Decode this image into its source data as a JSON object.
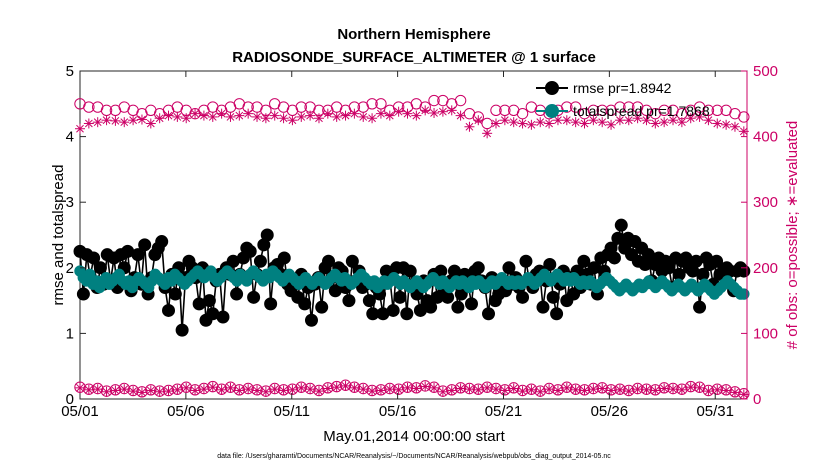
{
  "chart_data": {
    "type": "line",
    "title": "Northern Hemisphere",
    "subtitle": "RADIOSONDE_SURFACE_ALTIMETER @ 1 surface",
    "xlabel": "May.01,2014 00:00:00 start",
    "ylabel_left": "rmse and totalspread",
    "ylabel_right": "# of obs: o=possible; ∗=evaluated",
    "footnote": "data file: /Users/gharamti/Documents/NCAR/Reanalysis/~/Documents/NCAR/Reanalysis/webpub/obs_diag_output_2014-05.nc",
    "x_range": [
      0,
      31.5
    ],
    "x_ticks": [
      {
        "label": "05/01",
        "day": 0
      },
      {
        "label": "05/06",
        "day": 5
      },
      {
        "label": "05/11",
        "day": 10
      },
      {
        "label": "05/16",
        "day": 15
      },
      {
        "label": "05/21",
        "day": 20
      },
      {
        "label": "05/26",
        "day": 25
      },
      {
        "label": "05/31",
        "day": 30
      }
    ],
    "ylim_left": [
      0,
      5
    ],
    "yticks_left": [
      "0",
      "1",
      "2",
      "3",
      "4",
      "5"
    ],
    "ylim_right": [
      0,
      500
    ],
    "yticks_right": [
      "0",
      "100",
      "200",
      "300",
      "400",
      "500"
    ],
    "colors": {
      "rmse": "#000000",
      "spread": "#008080",
      "obs": "#cc0066"
    },
    "series": [
      {
        "name": "rmse",
        "legend": "rmse pr=1.8942",
        "axis": "left",
        "values": [
          2.25,
          1.6,
          2.2,
          1.85,
          2.15,
          1.7,
          2.0,
          1.75,
          2.2,
          1.8,
          2.15,
          1.7,
          2.2,
          2.0,
          2.25,
          1.65,
          1.85,
          2.2,
          1.75,
          2.35,
          1.6,
          1.85,
          2.2,
          2.3,
          2.4,
          1.7,
          1.35,
          1.9,
          1.6,
          2.0,
          1.05,
          1.85,
          2.1,
          2.0,
          1.85,
          1.45,
          2.0,
          1.2,
          1.5,
          1.3,
          1.8,
          1.9,
          1.25,
          2.0,
          1.9,
          2.1,
          1.6,
          1.9,
          2.15,
          2.3,
          2.25,
          1.55,
          1.9,
          2.1,
          2.35,
          2.5,
          1.45,
          2.0,
          2.05,
          1.9,
          2.15,
          1.75,
          1.65,
          1.75,
          1.55,
          1.9,
          1.45,
          1.7,
          1.2,
          1.75,
          1.85,
          1.4,
          2.0,
          2.1,
          1.85,
          1.65,
          2.0,
          1.95,
          1.7,
          1.5,
          2.1,
          1.8,
          1.95,
          1.7,
          1.75,
          1.5,
          1.3,
          1.7,
          1.6,
          1.3,
          1.95,
          1.85,
          1.35,
          2.0,
          1.55,
          2.0,
          1.3,
          1.95,
          1.75,
          1.6,
          1.35,
          1.8,
          1.5,
          1.4,
          1.9,
          1.55,
          1.95,
          1.7,
          1.55,
          1.8,
          1.95,
          1.4,
          1.6,
          1.9,
          1.75,
          1.45,
          1.95,
          2.0,
          1.8,
          1.7,
          1.3,
          1.85,
          1.5,
          1.6,
          1.8,
          1.65,
          2.0,
          1.75,
          1.85,
          1.7,
          1.55,
          2.1,
          1.8,
          1.7,
          1.9,
          1.95,
          1.4,
          1.8,
          2.05,
          1.55,
          1.3,
          1.75,
          1.95,
          1.5,
          1.85,
          1.6,
          1.95,
          1.7,
          2.1,
          1.9,
          1.75,
          2.0,
          1.6,
          2.15,
          1.95,
          2.2,
          2.3,
          2.15,
          2.45,
          2.65,
          2.3,
          2.45,
          2.2,
          2.4,
          2.1,
          2.3,
          2.05,
          2.2,
          1.8,
          2.05,
          2.15,
          1.95,
          2.1,
          2.0,
          1.7,
          2.15,
          1.9,
          2.1,
          2.15,
          2.0,
          1.95,
          2.1,
          1.4,
          1.9,
          2.15,
          2.05,
          1.75,
          2.1,
          1.9,
          1.95,
          2.0,
          1.95,
          1.65,
          1.95,
          2.0,
          1.95
        ]
      },
      {
        "name": "totalspread",
        "legend": "totalspread pr=1.7868",
        "axis": "left",
        "values": [
          1.95,
          1.85,
          1.8,
          1.9,
          1.75,
          1.8,
          1.7,
          1.8,
          1.85,
          1.75,
          1.8,
          1.85,
          1.9,
          1.8,
          1.75,
          1.8,
          1.7,
          1.8,
          1.85,
          1.8,
          1.75,
          1.7,
          1.8,
          1.9,
          1.85,
          1.8,
          1.75,
          1.85,
          1.8,
          1.9,
          1.85,
          1.8,
          1.75,
          1.8,
          1.85,
          1.9,
          1.95,
          1.9,
          1.85,
          1.9,
          1.95,
          1.85,
          1.8,
          1.85,
          1.9,
          1.95,
          1.9,
          1.85,
          1.8,
          1.9,
          1.85,
          1.8,
          1.9,
          1.95,
          1.9,
          1.85,
          1.8,
          1.9,
          1.85,
          1.95,
          1.9,
          1.85,
          1.8,
          1.85,
          1.9,
          1.85,
          1.8,
          1.75,
          1.8,
          1.85,
          1.8,
          1.75,
          1.8,
          1.85,
          1.8,
          1.75,
          1.8,
          1.85,
          1.9,
          1.85,
          1.8,
          1.85,
          1.8,
          1.75,
          1.8,
          1.85,
          1.9,
          1.85,
          1.8,
          1.75,
          1.8,
          1.7,
          1.75,
          1.8,
          1.75,
          1.8,
          1.85,
          1.8,
          1.75,
          1.8,
          1.75,
          1.7,
          1.75,
          1.8,
          1.75,
          1.7,
          1.75,
          1.8,
          1.85,
          1.8,
          1.75,
          1.8,
          1.75,
          1.7,
          1.75,
          1.8,
          1.75,
          1.8,
          1.75,
          1.7,
          1.8,
          1.75,
          1.8,
          1.75,
          1.7,
          1.75,
          1.8,
          1.75,
          1.8,
          1.85,
          1.8,
          1.75,
          1.8,
          1.75,
          1.8,
          1.75,
          1.8,
          1.85,
          1.8,
          1.75,
          1.8,
          1.85,
          1.9,
          1.85,
          1.8,
          1.85,
          1.9,
          1.85,
          1.8,
          1.85,
          1.8,
          1.85,
          1.8,
          1.75,
          1.8,
          1.75,
          1.8,
          1.75,
          1.7,
          1.75,
          1.8,
          1.85,
          1.8,
          1.75,
          1.7,
          1.65,
          1.7,
          1.75,
          1.7,
          1.65,
          1.7,
          1.75,
          1.7,
          1.75,
          1.8,
          1.75,
          1.7,
          1.75,
          1.8,
          1.75,
          1.7,
          1.65,
          1.7,
          1.75,
          1.7,
          1.65,
          1.7,
          1.75,
          1.7,
          1.65,
          1.7,
          1.75,
          1.7,
          1.65,
          1.6,
          1.65,
          1.7,
          1.75,
          1.8,
          1.75,
          1.7,
          1.65,
          1.6,
          1.6
        ]
      },
      {
        "name": "obs possible",
        "marker": "open circle",
        "axis": "right",
        "values": [
          450,
          445,
          445,
          440,
          440,
          445,
          440,
          435,
          440,
          435,
          440,
          445,
          440,
          435,
          440,
          445,
          440,
          445,
          450,
          445,
          445,
          440,
          450,
          445,
          440,
          445,
          445,
          440,
          440,
          445,
          440,
          445,
          445,
          450,
          450,
          440,
          445,
          445,
          450,
          445,
          455,
          455,
          450,
          455,
          435,
          430,
          420,
          440,
          440,
          440,
          435,
          445,
          440,
          435,
          440,
          445,
          445,
          435,
          440,
          440,
          440,
          445,
          445,
          445,
          440,
          435,
          440,
          440,
          435,
          440,
          445,
          440,
          440,
          440,
          435,
          430
        ]
      },
      {
        "name": "obs evaluated",
        "marker": "asterisk",
        "axis": "right",
        "values": [
          412,
          420,
          422,
          425,
          424,
          422,
          425,
          426,
          420,
          428,
          432,
          430,
          428,
          435,
          432,
          430,
          435,
          430,
          432,
          435,
          430,
          428,
          432,
          428,
          425,
          430,
          432,
          428,
          435,
          430,
          432,
          435,
          430,
          428,
          435,
          432,
          438,
          435,
          432,
          440,
          436,
          438,
          440,
          432,
          415,
          425,
          405,
          420,
          425,
          422,
          420,
          418,
          422,
          420,
          425,
          425,
          422,
          420,
          425,
          422,
          418,
          425,
          425,
          428,
          425,
          420,
          422,
          425,
          422,
          428,
          430,
          425,
          420,
          418,
          415,
          408
        ]
      },
      {
        "name": "obs possible (lower)",
        "marker": "open circle",
        "axis": "right",
        "values": [
          18,
          15,
          16,
          12,
          14,
          16,
          13,
          11,
          14,
          12,
          13,
          15,
          18,
          14,
          16,
          19,
          15,
          18,
          14,
          16,
          14,
          12,
          16,
          14,
          15,
          18,
          16,
          13,
          17,
          19,
          21,
          18,
          16,
          13,
          14,
          16,
          15,
          18,
          17,
          20,
          18,
          12,
          14,
          17,
          16,
          15,
          18,
          16,
          14,
          17,
          13,
          15,
          12,
          16,
          14,
          18,
          15,
          14,
          16,
          17,
          14,
          15,
          13,
          16,
          15,
          14,
          17,
          16,
          15,
          19,
          18,
          13,
          15,
          14,
          11,
          8
        ]
      },
      {
        "name": "obs evaluated (lower)",
        "marker": "asterisk",
        "axis": "right",
        "values": [
          17,
          14,
          15,
          11,
          13,
          15,
          12,
          10,
          13,
          11,
          12,
          14,
          17,
          13,
          15,
          18,
          14,
          17,
          13,
          15,
          13,
          11,
          15,
          13,
          14,
          17,
          15,
          12,
          16,
          18,
          20,
          17,
          15,
          12,
          13,
          15,
          14,
          17,
          16,
          19,
          17,
          11,
          13,
          16,
          15,
          14,
          17,
          15,
          13,
          16,
          12,
          14,
          11,
          15,
          13,
          17,
          14,
          13,
          15,
          16,
          13,
          14,
          12,
          15,
          14,
          13,
          16,
          15,
          14,
          18,
          17,
          12,
          14,
          13,
          10,
          7
        ]
      }
    ]
  }
}
